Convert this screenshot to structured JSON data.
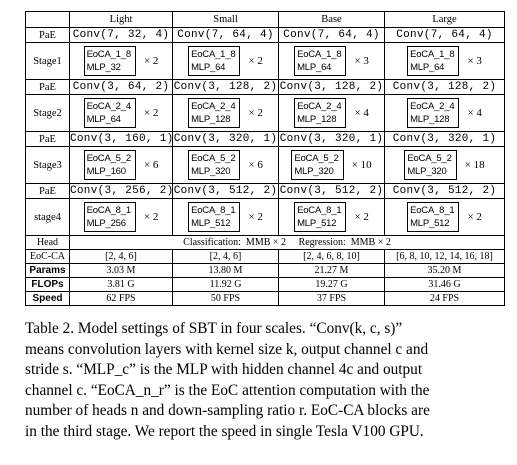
{
  "table": {
    "headers": [
      "Light",
      "Small",
      "Base",
      "Large"
    ],
    "rows": [
      {
        "type": "pae",
        "label": "PaE",
        "cells": [
          "Conv(7, 32, 4)",
          "Conv(7, 64, 4)",
          "Conv(7, 64, 4)",
          "Conv(7, 64, 4)"
        ]
      },
      {
        "type": "stage",
        "label": "Stage1",
        "cells": [
          {
            "eoca": "EoCA_1_8",
            "mlp": "MLP_32",
            "mult": "× 2"
          },
          {
            "eoca": "EoCA_1_8",
            "mlp": "MLP_64",
            "mult": "× 2"
          },
          {
            "eoca": "EoCA_1_8",
            "mlp": "MLP_64",
            "mult": "× 3"
          },
          {
            "eoca": "EoCA_1_8",
            "mlp": "MLP_64",
            "mult": "× 3"
          }
        ]
      },
      {
        "type": "pae",
        "label": "PaE",
        "cells": [
          "Conv(3, 64, 2)",
          "Conv(3, 128, 2)",
          "Conv(3, 128, 2)",
          "Conv(3, 128, 2)"
        ]
      },
      {
        "type": "stage",
        "label": "Stage2",
        "cells": [
          {
            "eoca": "EoCA_2_4",
            "mlp": "MLP_64",
            "mult": "× 2"
          },
          {
            "eoca": "EoCA_2_4",
            "mlp": "MLP_128",
            "mult": "× 2"
          },
          {
            "eoca": "EoCA_2_4",
            "mlp": "MLP_128",
            "mult": "× 4"
          },
          {
            "eoca": "EoCA_2_4",
            "mlp": "MLP_128",
            "mult": "× 4"
          }
        ]
      },
      {
        "type": "pae",
        "label": "PaE",
        "cells": [
          "Conv(3, 160, 1)",
          "Conv(3, 320, 1)",
          "Conv(3, 320, 1)",
          "Conv(3, 320, 1)"
        ]
      },
      {
        "type": "stage",
        "label": "Stage3",
        "cells": [
          {
            "eoca": "EoCA_5_2",
            "mlp": "MLP_160",
            "mult": "× 6"
          },
          {
            "eoca": "EoCA_5_2",
            "mlp": "MLP_320",
            "mult": "× 6"
          },
          {
            "eoca": "EoCA_5_2",
            "mlp": "MLP_320",
            "mult": "× 10"
          },
          {
            "eoca": "EoCA_5_2",
            "mlp": "MLP_320",
            "mult": "× 18"
          }
        ]
      },
      {
        "type": "pae",
        "label": "PaE",
        "cells": [
          "Conv(3, 256, 2)",
          "Conv(3, 512, 2)",
          "Conv(3, 512, 2)",
          "Conv(3, 512, 2)"
        ]
      },
      {
        "type": "stage",
        "label": "stage4",
        "cells": [
          {
            "eoca": "EoCA_8_1",
            "mlp": "MLP_256",
            "mult": "× 2"
          },
          {
            "eoca": "EoCA_8_1",
            "mlp": "MLP_512",
            "mult": "× 2"
          },
          {
            "eoca": "EoCA_8_1",
            "mlp": "MLP_512",
            "mult": "× 2"
          },
          {
            "eoca": "EoCA_8_1",
            "mlp": "MLP_512",
            "mult": "× 2"
          }
        ]
      }
    ],
    "head_row": {
      "label": "Head",
      "text": "Classification:  MMB × 2     Regression:  MMB × 2"
    },
    "stat_rows": [
      {
        "label": "EoC-CA",
        "bold": false,
        "cells": [
          "[2, 4, 6]",
          "[2, 4, 6]",
          "[2, 4, 6, 8, 10]",
          "[6, 8, 10, 12, 14, 16, 18]"
        ]
      },
      {
        "label": "Params",
        "bold": true,
        "cells": [
          "3.03 M",
          "13.80 M",
          "21.27 M",
          "35.20 M"
        ]
      },
      {
        "label": "FLOPs",
        "bold": true,
        "cells": [
          "3.81 G",
          "11.92 G",
          "19.27 G",
          "31.46 G"
        ]
      },
      {
        "label": "Speed",
        "bold": true,
        "cells": [
          "62 FPS",
          "50 FPS",
          "37 FPS",
          "24 FPS"
        ]
      }
    ]
  },
  "caption_lines": [
    "Table 2.  Model settings of SBT in four scales.  “Conv(k, c, s)”",
    "means convolution layers with kernel size k, output channel c and",
    "stride s. “MLP_c” is the MLP with hidden channel 4c and output",
    "channel c. “EoCA_n_r” is the EoC attention computation with the",
    "number of heads n and down-sampling ratio r. EoC-CA blocks are",
    "in the third stage. We report the speed in single Tesla V100 GPU."
  ]
}
